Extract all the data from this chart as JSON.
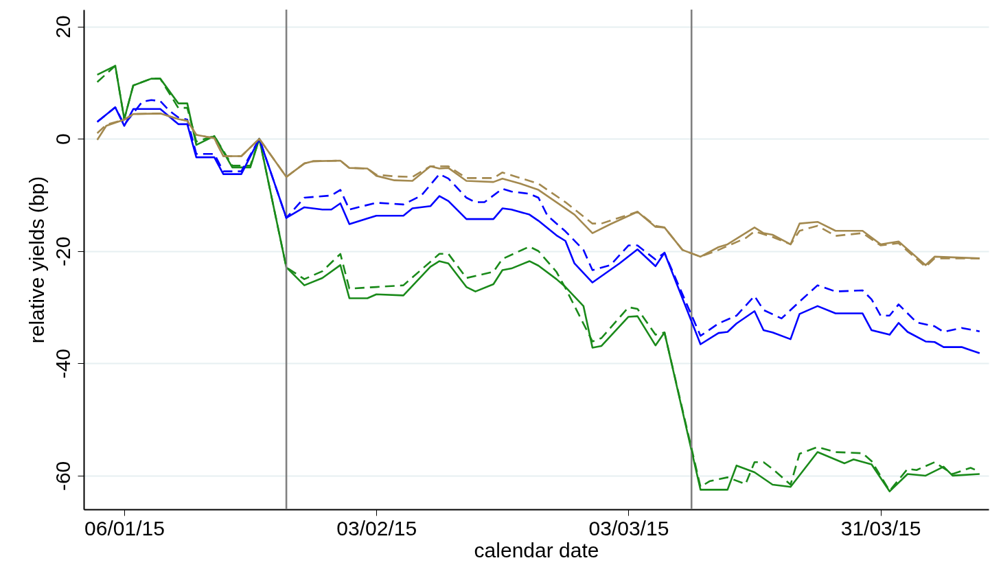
{
  "chart_data": {
    "type": "line",
    "xlabel": "calendar date",
    "ylabel": "relative yields (bp)",
    "xlim": [
      "2015-01-01T12:00",
      "2015-04-12"
    ],
    "ylim": [
      -66,
      23
    ],
    "xticks": [
      {
        "value": "2015-01-06",
        "label": "06/01/15"
      },
      {
        "value": "2015-02-03",
        "label": "03/02/15"
      },
      {
        "value": "2015-03-03",
        "label": "03/03/15"
      },
      {
        "value": "2015-03-31",
        "label": "31/03/15"
      }
    ],
    "yticks": [
      -60,
      -40,
      -20,
      0,
      20
    ],
    "grid": "y",
    "marker": "none",
    "ref_lines": [
      {
        "axis": "x",
        "value": "2015-01-24",
        "color": "#808080"
      },
      {
        "axis": "x",
        "value": "2015-03-10",
        "color": "#808080"
      }
    ],
    "series": [
      {
        "color": "#1a8a1a",
        "line_style": "solid",
        "x": [
          "2015-01-03",
          "2015-01-05",
          "2015-01-06",
          "2015-01-07",
          "2015-01-09",
          "2015-01-10",
          "2015-01-12",
          "2015-01-13",
          "2015-01-14",
          "2015-01-16",
          "2015-01-18",
          "2015-01-20",
          "2015-01-21",
          "2015-01-24",
          "2015-01-26",
          "2015-01-28",
          "2015-01-30",
          "2015-01-31",
          "2015-02-02",
          "2015-02-03",
          "2015-02-06",
          "2015-02-09",
          "2015-02-10",
          "2015-02-11",
          "2015-02-13",
          "2015-02-14",
          "2015-02-16",
          "2015-02-17",
          "2015-02-18",
          "2015-02-20",
          "2015-02-21",
          "2015-02-23",
          "2015-02-24",
          "2015-02-26",
          "2015-02-27",
          "2015-02-28",
          "2015-03-03",
          "2015-03-04",
          "2015-03-06",
          "2015-03-07",
          "2015-03-11",
          "2015-03-14",
          "2015-03-15",
          "2015-03-17",
          "2015-03-19",
          "2015-03-21",
          "2015-03-24",
          "2015-03-27",
          "2015-03-28",
          "2015-03-30",
          "2015-04-01",
          "2015-04-03",
          "2015-04-05",
          "2015-04-07",
          "2015-04-08",
          "2015-04-11"
        ],
        "values": [
          11.4,
          13,
          3.5,
          9.5,
          10.7,
          10.7,
          6.3,
          6.3,
          -1.1,
          0.5,
          -5.1,
          -5.1,
          0,
          -22.9,
          -26.1,
          -24.8,
          -22.5,
          -28.4,
          -28.4,
          -27.7,
          -27.9,
          -22.8,
          -21.8,
          -22.2,
          -26.4,
          -27.2,
          -25.9,
          -23.4,
          -23.1,
          -21.8,
          -22.6,
          -25,
          -26.4,
          -29.8,
          -37.2,
          -36.9,
          -31.7,
          -31.6,
          -36.8,
          -34.5,
          -62.5,
          -62.5,
          -58.2,
          -59.4,
          -61.6,
          -62,
          -55.8,
          -57.8,
          -57.1,
          -58,
          -62.8,
          -59.7,
          -60,
          -58.4,
          -60,
          -59.7
        ]
      },
      {
        "color": "#1a8a1a",
        "line_style": "dashed",
        "x": [
          "2015-01-03",
          "2015-01-05",
          "2015-01-06",
          "2015-01-07",
          "2015-01-09",
          "2015-01-10",
          "2015-01-12",
          "2015-01-13",
          "2015-01-14",
          "2015-01-16",
          "2015-01-18",
          "2015-01-20",
          "2015-01-21",
          "2015-01-24",
          "2015-01-26",
          "2015-01-28",
          "2015-01-30",
          "2015-01-31",
          "2015-02-03",
          "2015-02-06",
          "2015-02-10",
          "2015-02-11",
          "2015-02-13",
          "2015-02-16",
          "2015-02-17",
          "2015-02-20",
          "2015-02-21",
          "2015-02-23",
          "2015-02-24",
          "2015-02-27",
          "2015-02-28",
          "2015-03-03",
          "2015-03-04",
          "2015-03-06",
          "2015-03-07",
          "2015-03-11",
          "2015-03-12",
          "2015-03-14",
          "2015-03-16",
          "2015-03-17",
          "2015-03-18",
          "2015-03-19",
          "2015-03-21",
          "2015-03-22",
          "2015-03-24",
          "2015-03-26",
          "2015-03-29",
          "2015-03-30",
          "2015-04-01",
          "2015-04-03",
          "2015-04-04",
          "2015-04-06",
          "2015-04-08",
          "2015-04-10",
          "2015-04-11"
        ],
        "values": [
          10.1,
          13,
          3.5,
          9.5,
          10.7,
          10.7,
          5.5,
          5.5,
          -0.5,
          0.5,
          -4.8,
          -4.8,
          0,
          -22.9,
          -25,
          -23.6,
          -20.5,
          -26.7,
          -26.4,
          -26.1,
          -20.5,
          -20.5,
          -24.8,
          -23.7,
          -21.4,
          -19.2,
          -20,
          -23.7,
          -26.6,
          -36.1,
          -35.5,
          -30,
          -30.3,
          -34.9,
          -34.5,
          -62,
          -61,
          -60.3,
          -61.5,
          -57.6,
          -57.6,
          -58.8,
          -61.6,
          -56.1,
          -54.9,
          -55.8,
          -56,
          -57.4,
          -62.7,
          -58.8,
          -59,
          -57.6,
          -59.7,
          -58.6,
          -59.3
        ]
      },
      {
        "color": "#0000ff",
        "line_style": "solid",
        "x": [
          "2015-01-03",
          "2015-01-05",
          "2015-01-06",
          "2015-01-07",
          "2015-01-10",
          "2015-01-12",
          "2015-01-13",
          "2015-01-14",
          "2015-01-16",
          "2015-01-17",
          "2015-01-19",
          "2015-01-21",
          "2015-01-24",
          "2015-01-26",
          "2015-01-28",
          "2015-01-29",
          "2015-01-30",
          "2015-01-31",
          "2015-02-02",
          "2015-02-03",
          "2015-02-06",
          "2015-02-07",
          "2015-02-09",
          "2015-02-10",
          "2015-02-11",
          "2015-02-13",
          "2015-02-16",
          "2015-02-17",
          "2015-02-18",
          "2015-02-20",
          "2015-02-21",
          "2015-02-23",
          "2015-02-24",
          "2015-02-25",
          "2015-02-27",
          "2015-03-02",
          "2015-03-04",
          "2015-03-06",
          "2015-03-07",
          "2015-03-11",
          "2015-03-13",
          "2015-03-14",
          "2015-03-15",
          "2015-03-17",
          "2015-03-18",
          "2015-03-19",
          "2015-03-21",
          "2015-03-22",
          "2015-03-24",
          "2015-03-26",
          "2015-03-29",
          "2015-03-30",
          "2015-04-01",
          "2015-04-02",
          "2015-04-03",
          "2015-04-05",
          "2015-04-06",
          "2015-04-07",
          "2015-04-09",
          "2015-04-11"
        ],
        "values": [
          3,
          5.6,
          2.3,
          5.3,
          5.3,
          2.6,
          2.6,
          -3.3,
          -3.3,
          -6.3,
          -6.3,
          0,
          -14.1,
          -12.2,
          -12.6,
          -12.6,
          -11.5,
          -15.2,
          -14.2,
          -13.7,
          -13.7,
          -12.4,
          -12,
          -10.2,
          -11.1,
          -14.3,
          -14.3,
          -12.4,
          -12.6,
          -13.5,
          -14.6,
          -17.2,
          -18.2,
          -22.2,
          -25.6,
          -22.2,
          -19.7,
          -22.7,
          -20.3,
          -36.6,
          -34.6,
          -34.4,
          -32.9,
          -30.7,
          -34.1,
          -34.5,
          -35.7,
          -31.2,
          -29.8,
          -31.1,
          -31.1,
          -34.1,
          -34.9,
          -32.8,
          -34.4,
          -36.1,
          -36.2,
          -37.1,
          -37.1,
          -38.2
        ]
      },
      {
        "color": "#0000ff",
        "line_style": "dashed",
        "x": [
          "2015-01-03",
          "2015-01-05",
          "2015-01-06",
          "2015-01-08",
          "2015-01-09",
          "2015-01-10",
          "2015-01-11",
          "2015-01-12",
          "2015-01-13",
          "2015-01-14",
          "2015-01-16",
          "2015-01-17",
          "2015-01-19",
          "2015-01-21",
          "2015-01-24",
          "2015-01-26",
          "2015-01-29",
          "2015-01-30",
          "2015-01-31",
          "2015-02-03",
          "2015-02-06",
          "2015-02-08",
          "2015-02-10",
          "2015-02-11",
          "2015-02-13",
          "2015-02-14",
          "2015-02-15",
          "2015-02-17",
          "2015-02-18",
          "2015-02-20",
          "2015-02-21",
          "2015-02-22",
          "2015-02-24",
          "2015-02-26",
          "2015-02-27",
          "2015-03-01",
          "2015-03-03",
          "2015-03-04",
          "2015-03-06",
          "2015-03-07",
          "2015-03-11",
          "2015-03-13",
          "2015-03-15",
          "2015-03-17",
          "2015-03-18",
          "2015-03-20",
          "2015-03-22",
          "2015-03-24",
          "2015-03-26",
          "2015-03-29",
          "2015-03-30",
          "2015-03-31",
          "2015-04-01",
          "2015-04-02",
          "2015-04-04",
          "2015-04-06",
          "2015-04-07",
          "2015-04-09",
          "2015-04-11"
        ],
        "values": [
          3,
          5.6,
          2.5,
          6.6,
          6.9,
          6.7,
          5,
          3.8,
          3.4,
          -2.7,
          -2.7,
          -5.8,
          -5.8,
          0,
          -14.1,
          -10.5,
          -10.1,
          -9.1,
          -12.6,
          -11.4,
          -11.7,
          -10.1,
          -6.3,
          -7.1,
          -10.5,
          -11.3,
          -11.3,
          -8.9,
          -9.4,
          -9.8,
          -10.5,
          -13.7,
          -16.5,
          -19.8,
          -23.4,
          -22.5,
          -19,
          -19,
          -21.5,
          -20.3,
          -35.1,
          -32.9,
          -31.5,
          -28,
          -30.5,
          -32,
          -29,
          -26.1,
          -27.2,
          -27,
          -28.6,
          -31.5,
          -31.5,
          -29.5,
          -32.7,
          -33.4,
          -34.4,
          -33.7,
          -34.3
        ]
      },
      {
        "color": "#a3894f",
        "line_style": "solid",
        "x": [
          "2015-01-03",
          "2015-01-04",
          "2015-01-06",
          "2015-01-07",
          "2015-01-10",
          "2015-01-12",
          "2015-01-13",
          "2015-01-14",
          "2015-01-16",
          "2015-01-17",
          "2015-01-19",
          "2015-01-21",
          "2015-01-24",
          "2015-01-26",
          "2015-01-27",
          "2015-01-30",
          "2015-01-31",
          "2015-02-02",
          "2015-02-03",
          "2015-02-05",
          "2015-02-07",
          "2015-02-09",
          "2015-02-10",
          "2015-02-11",
          "2015-02-13",
          "2015-02-16",
          "2015-02-17",
          "2015-02-19",
          "2015-02-21",
          "2015-02-23",
          "2015-02-25",
          "2015-02-27",
          "2015-03-01",
          "2015-03-04",
          "2015-03-06",
          "2015-03-07",
          "2015-03-09",
          "2015-03-11",
          "2015-03-13",
          "2015-03-14",
          "2015-03-17",
          "2015-03-18",
          "2015-03-19",
          "2015-03-21",
          "2015-03-22",
          "2015-03-24",
          "2015-03-26",
          "2015-03-29",
          "2015-03-31",
          "2015-04-02",
          "2015-04-05",
          "2015-04-06",
          "2015-04-11"
        ],
        "values": [
          -0.2,
          2.3,
          3.4,
          4.4,
          4.5,
          3.5,
          3.2,
          0.7,
          0.1,
          -3.1,
          -3.1,
          0,
          -6.8,
          -4.4,
          -4,
          -3.9,
          -5.2,
          -5.3,
          -6.6,
          -7.4,
          -7.5,
          -4.9,
          -5.3,
          -5.2,
          -7.5,
          -7.7,
          -7.1,
          -8,
          -9.1,
          -11.3,
          -13.5,
          -16.8,
          -15.2,
          -13,
          -15.7,
          -15.8,
          -19.8,
          -21,
          -19.3,
          -18.8,
          -15.8,
          -16.8,
          -17.1,
          -18.8,
          -15.1,
          -14.8,
          -16.4,
          -16.4,
          -18.8,
          -18.3,
          -22.5,
          -21,
          -21.3
        ]
      },
      {
        "color": "#a3894f",
        "line_style": "dashed",
        "x": [
          "2015-01-03",
          "2015-01-04",
          "2015-01-06",
          "2015-01-07",
          "2015-01-10",
          "2015-01-12",
          "2015-01-13",
          "2015-01-14",
          "2015-01-16",
          "2015-01-17",
          "2015-01-19",
          "2015-01-21",
          "2015-01-24",
          "2015-01-26",
          "2015-01-27",
          "2015-01-30",
          "2015-01-31",
          "2015-02-02",
          "2015-02-03",
          "2015-02-05",
          "2015-02-07",
          "2015-02-09",
          "2015-02-11",
          "2015-02-13",
          "2015-02-16",
          "2015-02-17",
          "2015-02-21",
          "2015-02-24",
          "2015-02-27",
          "2015-02-28",
          "2015-03-04",
          "2015-03-06",
          "2015-03-07",
          "2015-03-09",
          "2015-03-11",
          "2015-03-13",
          "2015-03-16",
          "2015-03-17",
          "2015-03-19",
          "2015-03-21",
          "2015-03-22",
          "2015-03-24",
          "2015-03-26",
          "2015-03-29",
          "2015-03-31",
          "2015-04-02",
          "2015-04-05",
          "2015-04-06",
          "2015-04-11"
        ],
        "values": [
          1,
          2.5,
          3.4,
          4.4,
          4.5,
          3.5,
          3.2,
          0.7,
          0.1,
          -3.1,
          -3.1,
          0,
          -6.8,
          -4.4,
          -4,
          -3.9,
          -5.2,
          -5.3,
          -6.4,
          -6.7,
          -6.8,
          -4.9,
          -4.9,
          -7,
          -7,
          -6,
          -8,
          -11.3,
          -15.1,
          -15.1,
          -13,
          -15.5,
          -15.8,
          -19.8,
          -21,
          -19.8,
          -17.7,
          -16.5,
          -17.5,
          -18.8,
          -16.4,
          -15.5,
          -17.3,
          -16.8,
          -19,
          -18.6,
          -22.8,
          -21.3,
          -21.3
        ]
      }
    ]
  }
}
